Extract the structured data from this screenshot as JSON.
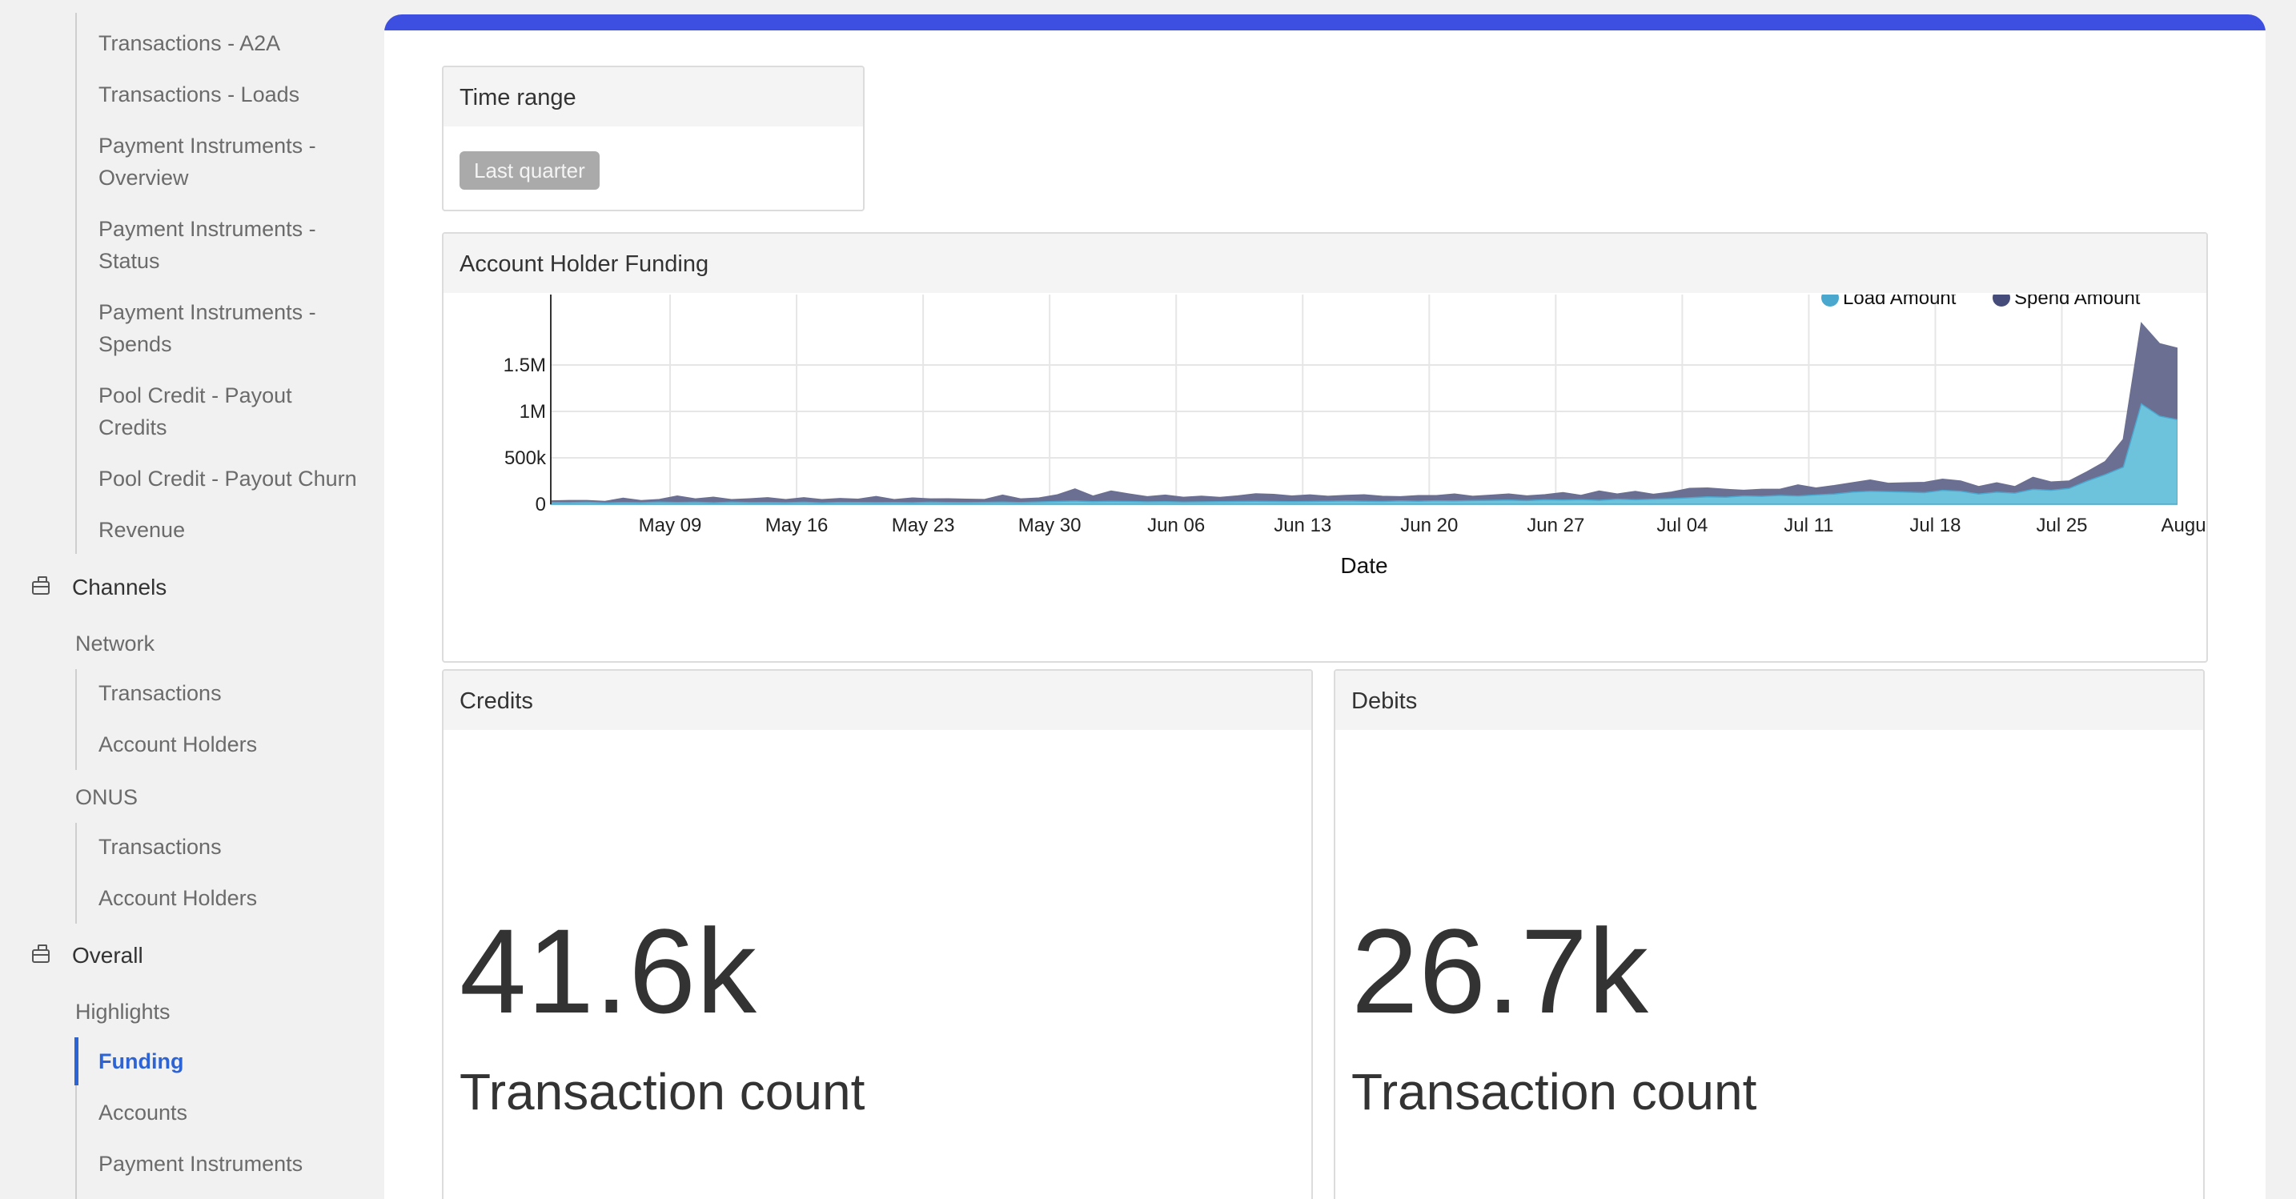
{
  "sidebar": {
    "top_items": [
      {
        "label": "Transactions - A2A"
      },
      {
        "label": "Transactions - Loads"
      },
      {
        "label": "Payment Instruments - Overview"
      },
      {
        "label": "Payment Instruments - Status"
      },
      {
        "label": "Payment Instruments - Spends"
      },
      {
        "label": "Pool Credit - Payout Credits"
      },
      {
        "label": "Pool Credit - Payout Churn"
      },
      {
        "label": "Revenue"
      }
    ],
    "channels": {
      "label": "Channels",
      "network": {
        "label": "Network",
        "items": [
          {
            "label": "Transactions"
          },
          {
            "label": "Account Holders"
          }
        ]
      },
      "onus": {
        "label": "ONUS",
        "items": [
          {
            "label": "Transactions"
          },
          {
            "label": "Account Holders"
          }
        ]
      }
    },
    "overall": {
      "label": "Overall",
      "highlights": {
        "label": "Highlights",
        "items": [
          {
            "label": "Funding",
            "active": true
          },
          {
            "label": "Accounts"
          },
          {
            "label": "Payment Instruments"
          }
        ]
      }
    }
  },
  "main": {
    "time_range": {
      "title": "Time range",
      "selected": "Last quarter"
    },
    "funding_chart": {
      "title": "Account Holder Funding"
    },
    "credits": {
      "title": "Credits",
      "value": "41.6k",
      "label": "Transaction count"
    },
    "debits": {
      "title": "Debits",
      "value": "26.7k",
      "label": "Transaction count"
    }
  },
  "colors": {
    "accent": "#3d4fe0",
    "active_nav": "#2c64d6",
    "load": "#6ec3dc",
    "spend": "#6b6f92",
    "legend_load": "#4aa8cf",
    "legend_spend": "#454c7a"
  },
  "chart_data": {
    "type": "area",
    "title": "Account Holder Funding",
    "xlabel": "Date",
    "ylabel": "",
    "x_ticks": [
      "May 09",
      "May 16",
      "May 23",
      "May 30",
      "Jun 06",
      "Jun 13",
      "Jun 20",
      "Jun 27",
      "Jul 04",
      "Jul 11",
      "Jul 18",
      "Jul 25",
      "Augus"
    ],
    "y_ticks": [
      "0",
      "500k",
      "1M",
      "1.5M"
    ],
    "ylim": [
      0,
      2000000
    ],
    "stacked": true,
    "legend_position": "top-right",
    "grid": true,
    "series": [
      {
        "name": "Load Amount",
        "color": "#6ec3dc",
        "values": [
          20000,
          18000,
          22000,
          15000,
          20000,
          17000,
          23000,
          19000,
          22000,
          16000,
          24000,
          18000,
          20000,
          17000,
          22000,
          15000,
          21000,
          19000,
          18000,
          20000,
          17000,
          22000,
          20000,
          18000,
          21000,
          23000,
          19000,
          25000,
          30000,
          35000,
          28000,
          32000,
          30000,
          26000,
          28000,
          24000,
          26000,
          28000,
          30000,
          32000,
          30000,
          28000,
          30000,
          33000,
          35000,
          32000,
          30000,
          36000,
          33000,
          38000,
          35000,
          40000,
          42000,
          45000,
          40000,
          48000,
          45000,
          50000,
          42000,
          55000,
          48000,
          55000,
          60000,
          70000,
          80000,
          75000,
          90000,
          85000,
          95000,
          88000,
          100000,
          110000,
          130000,
          140000,
          135000,
          130000,
          125000,
          150000,
          140000,
          110000,
          130000,
          120000,
          160000,
          150000,
          170000,
          250000,
          320000,
          400000,
          1080000,
          950000,
          910000
        ]
      },
      {
        "name": "Spend Amount",
        "color": "#6b6f92",
        "values": [
          15000,
          22000,
          18000,
          15000,
          45000,
          22000,
          28000,
          70000,
          35000,
          60000,
          25000,
          40000,
          50000,
          32000,
          48000,
          35000,
          40000,
          35000,
          65000,
          30000,
          50000,
          35000,
          38000,
          36000,
          30000,
          75000,
          38000,
          42000,
          70000,
          130000,
          60000,
          110000,
          80000,
          55000,
          70000,
          50000,
          60000,
          45000,
          60000,
          80000,
          75000,
          60000,
          70000,
          52000,
          60000,
          70000,
          55000,
          45000,
          60000,
          55000,
          75000,
          45000,
          55000,
          65000,
          50000,
          55000,
          80000,
          45000,
          100000,
          55000,
          90000,
          52000,
          70000,
          100000,
          95000,
          85000,
          60000,
          75000,
          65000,
          120000,
          75000,
          90000,
          100000,
          120000,
          90000,
          100000,
          110000,
          120000,
          110000,
          80000,
          100000,
          70000,
          130000,
          90000,
          80000,
          100000,
          140000,
          300000,
          870000,
          780000,
          770000
        ]
      }
    ]
  }
}
